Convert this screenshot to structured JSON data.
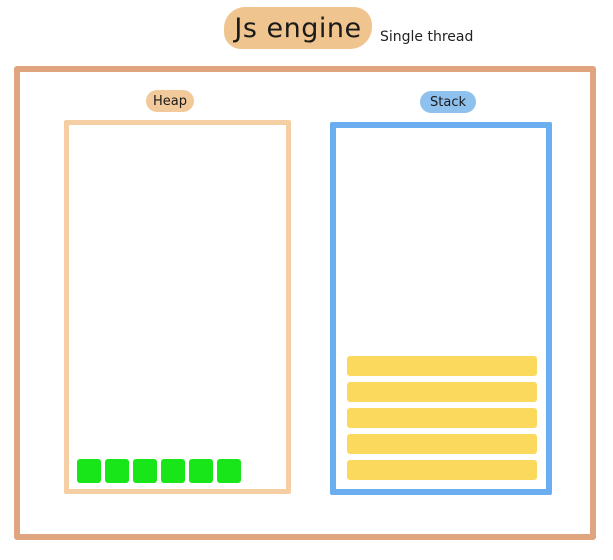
{
  "header": {
    "title": "Js engine",
    "subtitle": "Single thread"
  },
  "heap": {
    "label": "Heap",
    "objects": [
      "",
      "",
      "",
      "",
      "",
      ""
    ]
  },
  "stack": {
    "label": "Stack",
    "frames": [
      "",
      "",
      "",
      "",
      ""
    ]
  },
  "colors": {
    "title_pill": "#efc48e",
    "outer_frame": "#e0a47e",
    "heap_border": "#f5cfa3",
    "heap_label": "#f1c99a",
    "heap_object": "#19e619",
    "stack_border": "#6aaef0",
    "stack_label": "#8fc1ee",
    "stack_frame": "#fbd95d"
  }
}
